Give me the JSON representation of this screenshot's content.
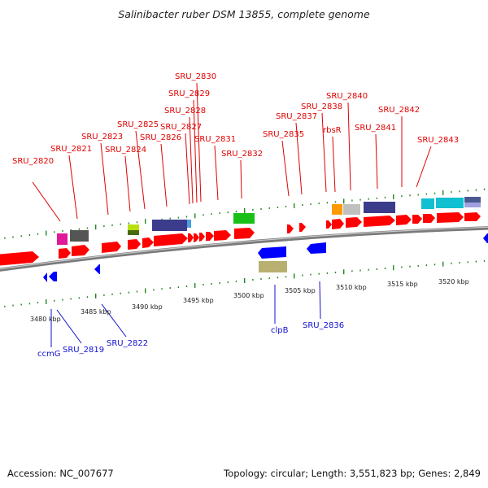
{
  "title": "Salinibacter ruber DSM 13855, complete genome",
  "footer": {
    "accession": "Accession: NC_007677",
    "summary": "Topology: circular; Length: 3,551,823 bp; Genes: 2,849"
  },
  "colors": {
    "forward_gene": "#ff0000",
    "reverse_gene": "#0000ff",
    "backbone": "#888888",
    "tick": "#228822",
    "forward_label": "#e00000",
    "reverse_label": "#1010d0"
  },
  "scale_labels": [
    "3480 kbp",
    "3485 kbp",
    "3490 kbp",
    "3495 kbp",
    "3500 kbp",
    "3505 kbp",
    "3510 kbp",
    "3515 kbp",
    "3520 kbp"
  ],
  "forward_gene_labels": [
    "SRU_2820",
    "SRU_2821",
    "SRU_2823",
    "SRU_2824",
    "SRU_2825",
    "SRU_2826",
    "SRU_2827",
    "SRU_2828",
    "SRU_2829",
    "SRU_2830",
    "SRU_2831",
    "SRU_2832",
    "SRU_2835",
    "SRU_2837",
    "SRU_2838",
    "rbsR",
    "SRU_2840",
    "SRU_2841",
    "SRU_2842",
    "SRU_2843"
  ],
  "reverse_gene_labels": [
    "ccmG",
    "SRU_2819",
    "SRU_2822",
    "clpB",
    "SRU_2836"
  ],
  "feature_types": [
    "forward-strand-gene",
    "reverse-strand-gene",
    "cog-category-box"
  ]
}
